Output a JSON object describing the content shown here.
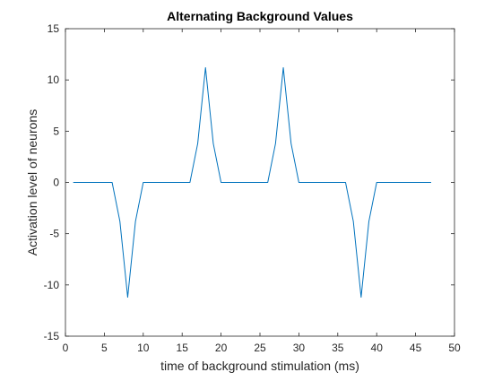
{
  "chart_data": {
    "type": "line",
    "title": "Alternating Background Values",
    "xlabel": "time of background stimulation (ms)",
    "ylabel": "Activation level of neurons",
    "xlim": [
      0,
      50
    ],
    "ylim": [
      -15,
      15
    ],
    "xticks": [
      0,
      5,
      10,
      15,
      20,
      25,
      30,
      35,
      40,
      45,
      50
    ],
    "yticks": [
      -15,
      -10,
      -5,
      0,
      5,
      10,
      15
    ],
    "grid": false,
    "legend": "none",
    "series": [
      {
        "color": "#0072bd",
        "x": [
          1,
          2,
          3,
          4,
          5,
          6,
          7,
          8,
          9,
          10,
          11,
          12,
          13,
          14,
          15,
          16,
          17,
          18,
          19,
          20,
          21,
          22,
          23,
          24,
          25,
          26,
          27,
          28,
          29,
          30,
          31,
          32,
          33,
          34,
          35,
          36,
          37,
          38,
          39,
          40,
          41,
          42,
          43,
          44,
          45,
          46,
          47
        ],
        "y": [
          0,
          0,
          0,
          0,
          0,
          0,
          -3.8,
          -11.2,
          -3.8,
          0,
          0,
          0,
          0,
          0,
          0,
          0,
          3.8,
          11.2,
          3.8,
          0,
          0,
          0,
          0,
          0,
          0,
          0,
          3.8,
          11.2,
          3.8,
          0,
          0,
          0,
          0,
          0,
          0,
          0,
          -3.8,
          -11.2,
          -3.8,
          0,
          0,
          0,
          0,
          0,
          0,
          0,
          0
        ]
      }
    ]
  }
}
